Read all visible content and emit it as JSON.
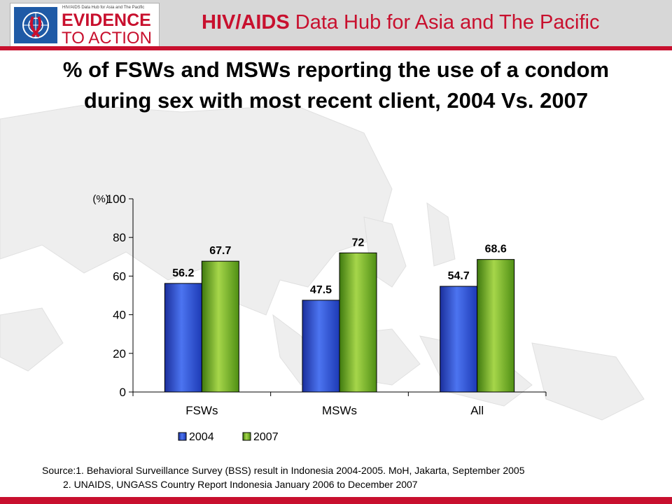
{
  "header": {
    "logo_small_text": "HIV/AIDS Data Hub for Asia and The Pacific",
    "logo_line1": "EVIDENCE",
    "logo_line2": "TO ACTION",
    "hub_title_bold": "HIV/AIDS",
    "hub_title_rest": " Data Hub for Asia and The Pacific"
  },
  "slide_title": "% of FSWs and MSWs reporting the use of a condom during sex with most recent client, 2004 Vs. 2007",
  "chart_data": {
    "type": "bar",
    "title": "",
    "ylabel": "(%)",
    "xlabel": "",
    "ylim": [
      0,
      100
    ],
    "yticks": [
      0,
      20,
      40,
      60,
      80,
      100
    ],
    "categories": [
      "FSWs",
      "MSWs",
      "All"
    ],
    "series": [
      {
        "name": "2004",
        "values": [
          56.2,
          47.5,
          54.7
        ],
        "labels": [
          "56.2",
          "47.5",
          "54.7"
        ],
        "color": "#2b4fd6"
      },
      {
        "name": "2007",
        "values": [
          67.7,
          72,
          68.6
        ],
        "labels": [
          "67.7",
          "72",
          "68.6"
        ],
        "color": "#6fb01e"
      }
    ],
    "grid": false,
    "legend": "bottom"
  },
  "source": {
    "line1": "Source:1. Behavioral Surveillance Survey (BSS) result in Indonesia 2004-2005. MoH, Jakarta,  September 2005",
    "line2": "2. UNAIDS, UNGASS Country Report Indonesia January 2006 to December 2007"
  }
}
